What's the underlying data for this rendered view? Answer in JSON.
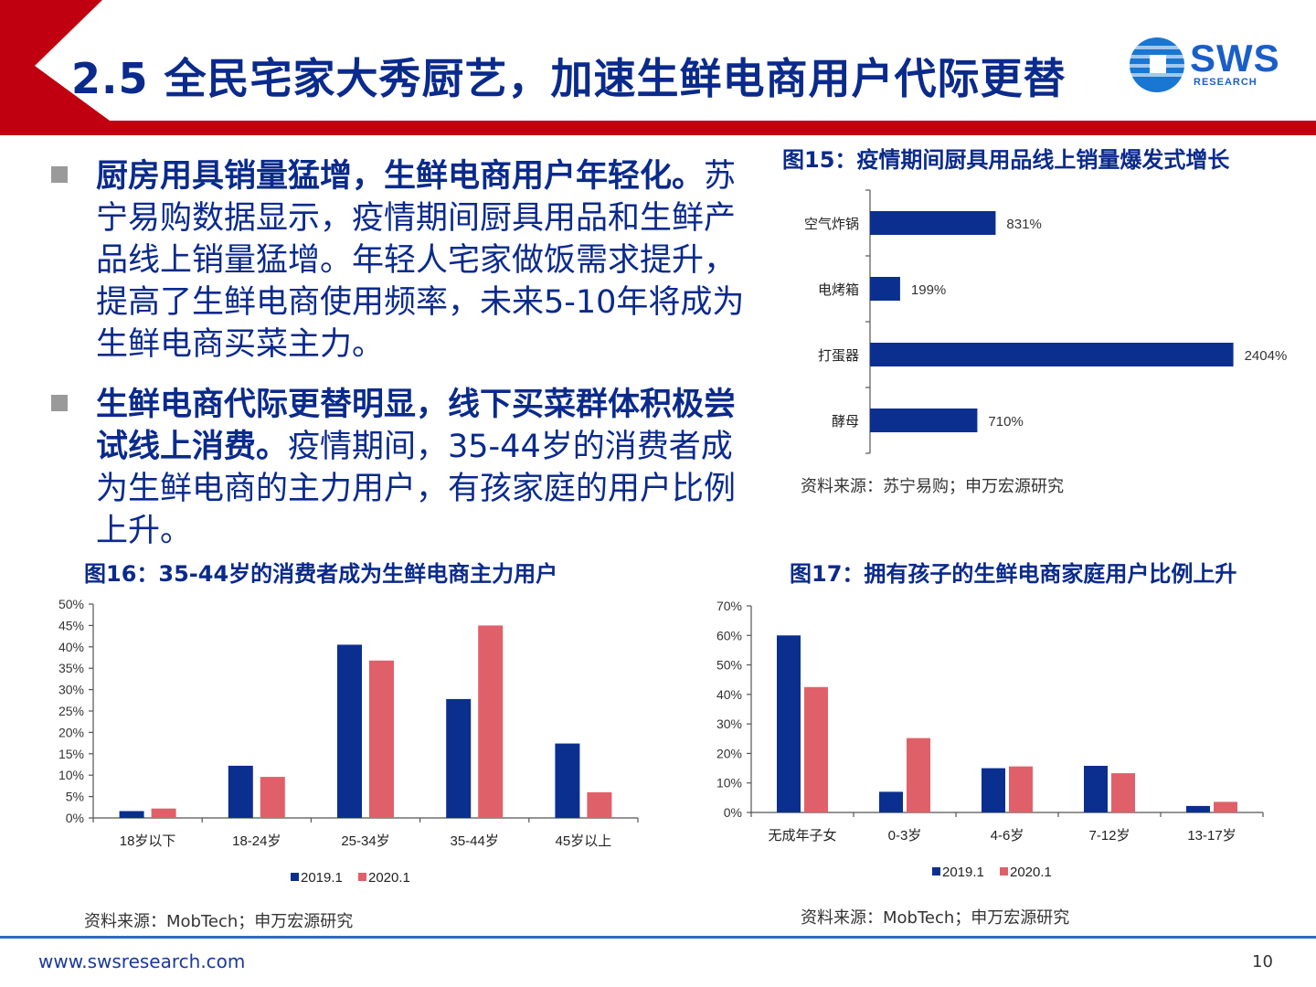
{
  "header": {
    "title": "2.5 全民宅家大秀厨艺，加速生鲜电商用户代际更替",
    "logo_main": "SWS",
    "logo_sub": "RESEARCH"
  },
  "bullets": [
    {
      "bold": "厨房用具销量猛增，生鲜电商用户年轻化。",
      "text": "苏宁易购数据显示，疫情期间厨具用品和生鲜产品线上销量猛增。年轻人宅家做饭需求提升，提高了生鲜电商使用频率，未来5-10年将成为生鲜电商买菜主力。"
    },
    {
      "bold": "生鲜电商代际更替明显，线下买菜群体积极尝试线上消费。",
      "text": "疫情期间，35-44岁的消费者成为生鲜电商的主力用户，有孩家庭的用户比例上升。"
    }
  ],
  "figures": {
    "fig15": {
      "title": "图15：疫情期间厨具用品线上销量爆发式增长",
      "source": "资料来源：苏宁易购；申万宏源研究"
    },
    "fig16": {
      "title": "图16：35-44岁的消费者成为生鲜电商主力用户",
      "source": "资料来源：MobTech；申万宏源研究"
    },
    "fig17": {
      "title": "图17：拥有孩子的生鲜电商家庭用户比例上升",
      "source": "资料来源：MobTech；申万宏源研究"
    }
  },
  "footer": {
    "url": "www.swsresearch.com",
    "page": "10"
  },
  "colors": {
    "navy": "#0a2a8c",
    "bar_blue": "#0b2f8f",
    "bar_red": "#e0606a",
    "banner_red": "#c00010"
  },
  "chart_data": [
    {
      "id": "fig15",
      "type": "bar",
      "orientation": "horizontal",
      "categories": [
        "空气炸锅",
        "电烤箱",
        "打蛋器",
        "酵母"
      ],
      "values": [
        831,
        199,
        2404,
        710
      ],
      "value_labels": [
        "831%",
        "199%",
        "2404%",
        "710%"
      ],
      "xlim": [
        0,
        2600
      ],
      "color": "#0b2f8f"
    },
    {
      "id": "fig16",
      "type": "bar",
      "categories": [
        "18岁以下",
        "18-24岁",
        "25-34岁",
        "35-44岁",
        "45岁以上"
      ],
      "series": [
        {
          "name": "2019.1",
          "values": [
            1.6,
            12.2,
            40.5,
            27.8,
            17.4
          ],
          "color": "#0b2f8f"
        },
        {
          "name": "2020.1",
          "values": [
            2.2,
            9.6,
            36.8,
            45.0,
            6.0
          ],
          "color": "#e0606a"
        }
      ],
      "ylim": [
        0,
        50
      ],
      "yticks": [
        "0%",
        "5%",
        "10%",
        "15%",
        "20%",
        "25%",
        "30%",
        "35%",
        "40%",
        "45%",
        "50%"
      ],
      "legend": "bottom"
    },
    {
      "id": "fig17",
      "type": "bar",
      "categories": [
        "无成年子女",
        "0-3岁",
        "4-6岁",
        "7-12岁",
        "13-17岁"
      ],
      "series": [
        {
          "name": "2019.1",
          "values": [
            60.0,
            7.0,
            15.0,
            15.8,
            2.2
          ],
          "color": "#0b2f8f"
        },
        {
          "name": "2020.1",
          "values": [
            42.5,
            25.2,
            15.6,
            13.3,
            3.6
          ],
          "color": "#e0606a"
        }
      ],
      "ylim": [
        0,
        70
      ],
      "yticks": [
        "0%",
        "10%",
        "20%",
        "30%",
        "40%",
        "50%",
        "60%",
        "70%"
      ],
      "legend": "bottom"
    }
  ]
}
